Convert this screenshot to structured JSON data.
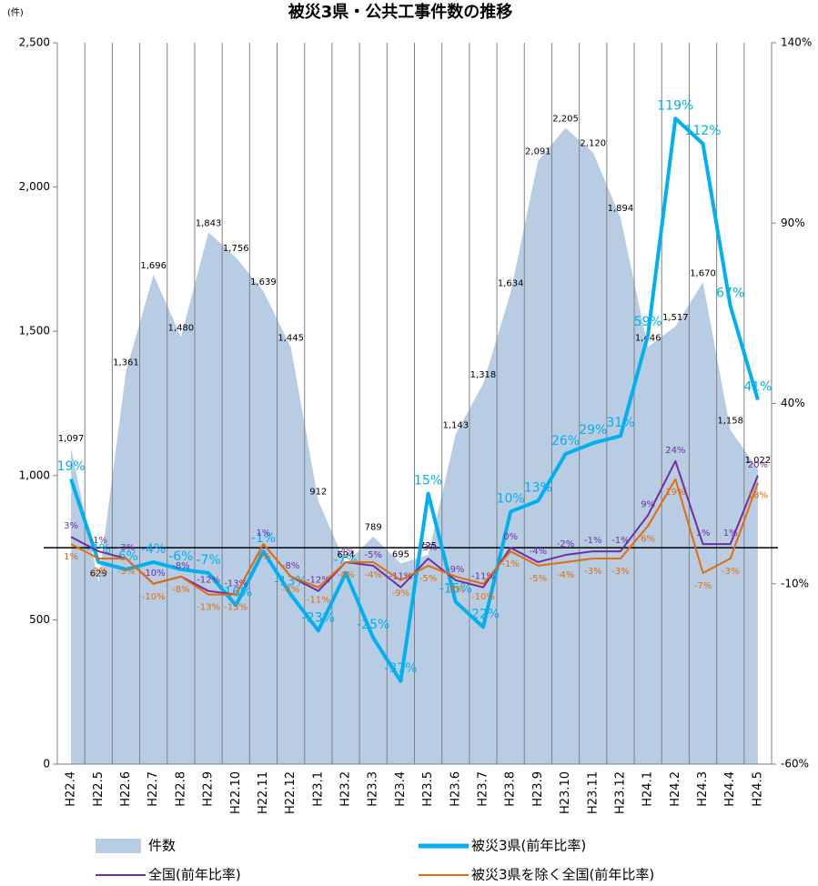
{
  "chart_data": {
    "type": "line",
    "title": "被災3県・公共工事件数の推移",
    "unit_label": "(件)",
    "categories": [
      "H22.4",
      "H22.5",
      "H22.6",
      "H22.7",
      "H22.8",
      "H22.9",
      "H22.10",
      "H22.11",
      "H22.12",
      "H23.1",
      "H23.2",
      "H23.3",
      "H23.4",
      "H23.5",
      "H23.6",
      "H23.7",
      "H23.8",
      "H23.9",
      "H23.10",
      "H23.11",
      "H23.12",
      "H24.1",
      "H24.2",
      "H24.3",
      "H24.4",
      "H24.5"
    ],
    "ylim": [
      0,
      2500
    ],
    "yticks": [
      0,
      500,
      {
        "value": 1000,
        "label": "1,000"
      },
      {
        "value": 1500,
        "label": "1,500"
      },
      {
        "value": 2000,
        "label": "2,000"
      },
      {
        "value": 2500,
        "label": "2,500"
      }
    ],
    "y2lim": [
      -60,
      140
    ],
    "y2ticks": [
      {
        "value": -60,
        "label": "-60%"
      },
      {
        "value": -10,
        "label": "-10%"
      },
      {
        "value": 40,
        "label": "40%"
      },
      {
        "value": 90,
        "label": "90%"
      },
      {
        "value": 140,
        "label": "140%"
      }
    ],
    "grid": "vertical",
    "series": [
      {
        "name": "件数",
        "type": "area",
        "axis": "y",
        "color": "#b8cce4",
        "values": [
          1097,
          629,
          1361,
          1696,
          1480,
          1843,
          1756,
          1639,
          1445,
          912,
          694,
          789,
          695,
          725,
          1143,
          1318,
          1634,
          2091,
          2205,
          2120,
          1894,
          1446,
          1517,
          1670,
          1158,
          1022
        ],
        "value_labels": [
          "1,097",
          "629",
          "1,361",
          "1,696",
          "1,480",
          "1,843",
          "1,756",
          "1,639",
          "1,445",
          "912",
          "694",
          "789",
          "695",
          "725",
          "1,143",
          "1,318",
          "1,634",
          "2,091",
          "2,205",
          "2,120",
          "1,894",
          "1,446",
          "1,517",
          "1,670",
          "1,158",
          "1,022"
        ]
      },
      {
        "name": "被災3県(前年比率)",
        "type": "line",
        "axis": "y2",
        "color": "#00b0f0",
        "values": [
          19,
          -4,
          -6,
          -4,
          -6,
          -7,
          -16,
          -1,
          -13,
          -23,
          -7,
          -25,
          -37,
          15,
          -15,
          -22,
          10,
          13,
          26,
          29,
          31,
          59,
          119,
          112,
          67,
          41
        ],
        "value_labels": [
          "19%",
          "-4%",
          "-6%",
          "-4%",
          "-6%",
          "-7%",
          "-16%",
          "-1%",
          "-13%",
          "-23%",
          "-7%",
          "-25%",
          "-37%",
          "15%",
          "-15%",
          "-22%",
          "10%",
          "13%",
          "26%",
          "29%",
          "31%",
          "59%",
          "119%",
          "112%",
          "67%",
          "41%"
        ]
      },
      {
        "name": "全国(前年比率)",
        "type": "line",
        "axis": "y2",
        "color": "#7030a0",
        "values": [
          3,
          -1,
          -3,
          -10,
          -8,
          -12,
          -13,
          1,
          -8,
          -12,
          -4,
          -5,
          -11,
          -3,
          -9,
          -11,
          0,
          -4,
          -2,
          -1,
          -1,
          9,
          24,
          1,
          1,
          20
        ],
        "value_labels": [
          "3%",
          "-1%",
          "-3%",
          "-10%",
          "-8%",
          "-12%",
          "-13%",
          "1%",
          "-8%",
          "-12%",
          "-4%",
          "-5%",
          "-11%",
          "-3%",
          "-9%",
          "-11%",
          "0%",
          "-4%",
          "-2%",
          "-1%",
          "-1%",
          "9%",
          "24%",
          "1%",
          "1%",
          "20%"
        ]
      },
      {
        "name": "被災3県を除く全国(前年比率)",
        "type": "line",
        "axis": "y2",
        "color": "#e46c0a",
        "values": [
          1,
          -3,
          -3,
          -10,
          -8,
          -13,
          -13,
          1,
          -8,
          -11,
          -4,
          -4,
          -9,
          -5,
          -8,
          -10,
          -1,
          -5,
          -4,
          -3,
          -3,
          6,
          19,
          -7,
          -3,
          18
        ],
        "value_labels": [
          "1%",
          "-3%",
          "-3%",
          "-10%",
          "-8%",
          "-13%",
          "-13%",
          "1%",
          "-8%",
          "-11%",
          "-4%",
          "-4%",
          "-9%",
          "-5%",
          "-8%",
          "-10%",
          "-1%",
          "-5%",
          "-4%",
          "-3%",
          "-3%",
          "6%",
          "19%",
          "-7%",
          "-3%",
          "18%"
        ]
      }
    ]
  }
}
